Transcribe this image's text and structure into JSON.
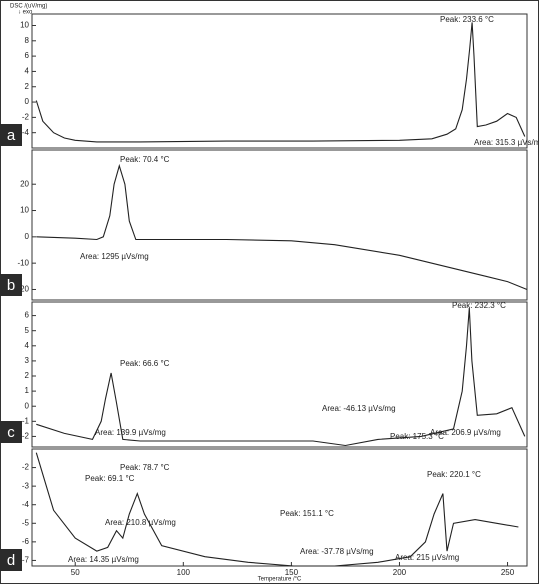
{
  "chart_data": [
    {
      "type": "line",
      "label": "a",
      "ylabel": "DSC /(uV/mg)",
      "note": "↓ exo",
      "xlim": [
        30,
        259
      ],
      "ylim": [
        -6,
        11.5
      ],
      "yticks": [
        10,
        8,
        6,
        4,
        2,
        0,
        -2,
        -4
      ],
      "x": [
        32,
        35,
        40,
        45,
        50,
        60,
        80,
        120,
        160,
        200,
        215,
        222,
        226,
        229,
        231,
        232.5,
        233.6,
        234.5,
        236,
        240,
        245,
        250,
        254,
        258
      ],
      "values": [
        0.2,
        -2.5,
        -4,
        -4.7,
        -5,
        -5.2,
        -5.2,
        -5.1,
        -5.1,
        -5,
        -4.8,
        -4.2,
        -3.5,
        -1,
        3,
        7,
        10.4,
        6,
        -3.2,
        -3,
        -2.5,
        -1.5,
        -2,
        -4.5
      ],
      "annotations": [
        "Peak: 233.6 °C",
        "Area: 315.3 µVs/mg"
      ]
    },
    {
      "type": "line",
      "label": "b",
      "xlim": [
        30,
        259
      ],
      "ylim": [
        -24,
        33
      ],
      "yticks": [
        20,
        10,
        0,
        -10,
        -20
      ],
      "x": [
        32,
        50,
        60,
        63,
        66,
        68,
        70.4,
        73,
        75,
        78,
        85,
        120,
        150,
        170,
        200,
        220,
        240,
        250,
        259
      ],
      "values": [
        0,
        -0.5,
        -1,
        0,
        8,
        20,
        27,
        20,
        6,
        -1,
        -1,
        -1,
        -1.5,
        -3,
        -7,
        -11,
        -15,
        -17,
        -20
      ],
      "annotations": [
        "Peak: 70.4 °C",
        "Area: 1295 µVs/mg"
      ]
    },
    {
      "type": "line",
      "label": "c",
      "xlim": [
        30,
        259
      ],
      "ylim": [
        -2.7,
        6.9
      ],
      "yticks": [
        6,
        5,
        4,
        3,
        2,
        1,
        0,
        -1,
        -2
      ],
      "x": [
        32,
        45,
        58,
        62,
        64,
        66.6,
        69,
        72,
        80,
        120,
        160,
        175,
        190,
        210,
        225,
        229,
        231,
        232.3,
        233.5,
        236,
        245,
        252,
        258
      ],
      "values": [
        -1.2,
        -1.8,
        -2.2,
        -1,
        0.5,
        2.2,
        0.3,
        -2.2,
        -2.3,
        -2.3,
        -2.3,
        -2.6,
        -2.2,
        -2,
        -1.5,
        1,
        4,
        6.5,
        3,
        -0.6,
        -0.5,
        -0.1,
        -2
      ],
      "annotations": [
        "Peak: 66.6 °C",
        "Area: 139.9 µVs/mg",
        "Area: -46.13 µVs/mg",
        "Peak: 175.3 °C",
        "Peak: 232.3 °C",
        "Area: 206.9 µVs/mg"
      ]
    },
    {
      "type": "line",
      "label": "d",
      "xlabel": "Temperature /°C",
      "xlim": [
        30,
        259
      ],
      "xticks": [
        50,
        100,
        150,
        200,
        250
      ],
      "ylim": [
        -7.3,
        -1
      ],
      "yticks": [
        -2,
        -3,
        -4,
        -5,
        -6,
        -7
      ],
      "x": [
        32,
        40,
        50,
        60,
        65,
        69.1,
        72,
        75,
        78.7,
        82,
        90,
        110,
        130,
        151.1,
        170,
        190,
        205,
        212,
        216,
        220.1,
        222,
        225,
        235,
        245,
        255
      ],
      "values": [
        -1.2,
        -4.3,
        -5.8,
        -6.5,
        -6.3,
        -5.4,
        -5.8,
        -4.5,
        -3.4,
        -4.5,
        -6.2,
        -6.8,
        -7.1,
        -7.3,
        -7.3,
        -7.1,
        -6.8,
        -6,
        -4.5,
        -3.4,
        -6.5,
        -5,
        -4.8,
        -5,
        -5.2
      ],
      "annotations": [
        "Peak: 78.7 °C",
        "Peak: 69.1 °C",
        "Area: 210.8 µVs/mg",
        "Area: 14.35 µVs/mg",
        "Peak: 151.1 °C",
        "Area: -37.78 µVs/mg",
        "Peak: 220.1 °C",
        "Area: 215 µVs/mg"
      ]
    }
  ]
}
